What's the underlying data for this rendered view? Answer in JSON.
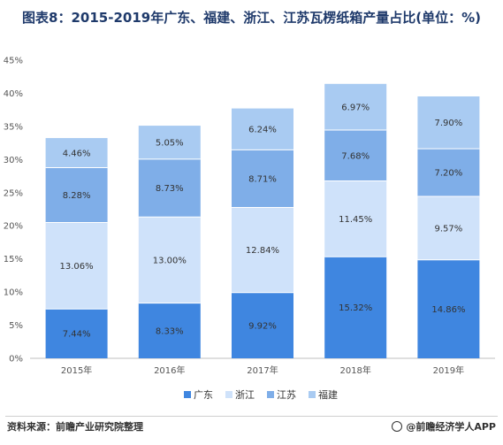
{
  "title": "图表8：2015-2019年广东、福建、浙江、江苏瓦楞纸箱产量占比(单位：%)",
  "source": "资料来源：前瞻产业研究院整理",
  "brand": "@前瞻经济学人APP",
  "chart_data": {
    "type": "bar",
    "stacked": true,
    "categories": [
      "2015年",
      "2016年",
      "2017年",
      "2018年",
      "2019年"
    ],
    "ylim": [
      0,
      45
    ],
    "yticks": [
      "0%",
      "5%",
      "10%",
      "15%",
      "20%",
      "25%",
      "30%",
      "35%",
      "40%",
      "45%"
    ],
    "grid": false,
    "legend_position": "bottom",
    "series": [
      {
        "name": "广东",
        "color": "#3f86e0",
        "values": [
          7.44,
          8.33,
          9.92,
          15.32,
          14.86
        ],
        "labels": [
          "7.44%",
          "8.33%",
          "9.92%",
          "15.32%",
          "14.86%"
        ]
      },
      {
        "name": "浙江",
        "color": "#cfe2fa",
        "values": [
          13.06,
          13.0,
          12.84,
          11.45,
          9.57
        ],
        "labels": [
          "13.06%",
          "13.00%",
          "12.84%",
          "11.45%",
          "9.57%"
        ]
      },
      {
        "name": "江苏",
        "color": "#7faee8",
        "values": [
          8.28,
          8.73,
          8.71,
          7.68,
          7.2
        ],
        "labels": [
          "8.28%",
          "8.73%",
          "8.71%",
          "7.68%",
          "7.20%"
        ]
      },
      {
        "name": "福建",
        "color": "#a9cbf2",
        "values": [
          4.46,
          5.05,
          6.24,
          6.97,
          7.9
        ],
        "labels": [
          "4.46%",
          "5.05%",
          "6.24%",
          "6.97%",
          "7.90%"
        ]
      }
    ]
  }
}
